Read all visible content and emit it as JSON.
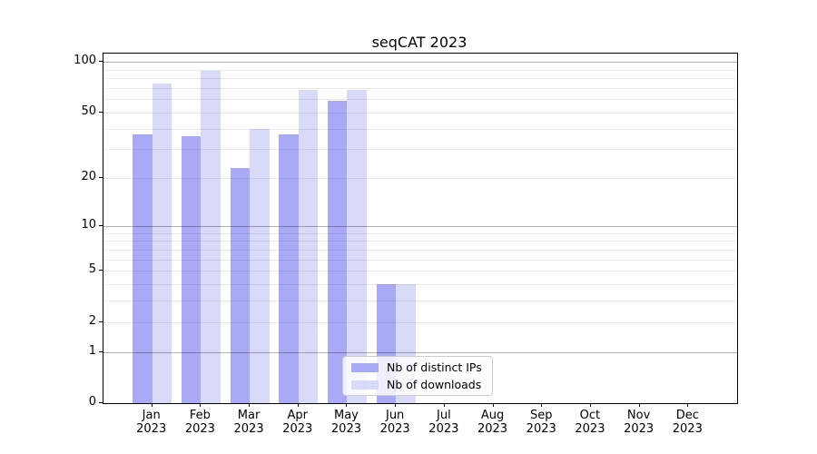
{
  "title": "seqCAT 2023",
  "chart_data": {
    "type": "bar",
    "title": "seqCAT 2023",
    "categories": [
      "Jan",
      "Feb",
      "Mar",
      "Apr",
      "May",
      "Jun",
      "Jul",
      "Aug",
      "Sep",
      "Oct",
      "Nov",
      "Dec"
    ],
    "x_tick_year": "2023",
    "series": [
      {
        "name": "Nb of distinct IPs",
        "color": "#a9a9f5",
        "values": [
          37,
          36,
          23,
          37,
          59,
          4,
          0,
          0,
          0,
          0,
          0,
          0
        ]
      },
      {
        "name": "Nb of downloads",
        "color": "#d9d9f8",
        "values": [
          74,
          88,
          40,
          68,
          68,
          4,
          0,
          0,
          0,
          0,
          0,
          0
        ]
      }
    ],
    "yscale": "log1p",
    "ylim": [
      0,
      112
    ],
    "ytick_labels": [
      0,
      1,
      2,
      5,
      10,
      20,
      50,
      100
    ],
    "ymajor_gridlines": [
      1,
      10,
      100
    ],
    "yminor_gridlines": [
      2,
      3,
      4,
      5,
      6,
      7,
      8,
      9,
      20,
      30,
      40,
      50,
      60,
      70,
      80,
      90
    ],
    "grid_color_major": "rgba(0,0,0,0.30)",
    "grid_color_minor": "rgba(0,0,0,0.08)",
    "legend_position": "lower center",
    "grid": true
  }
}
